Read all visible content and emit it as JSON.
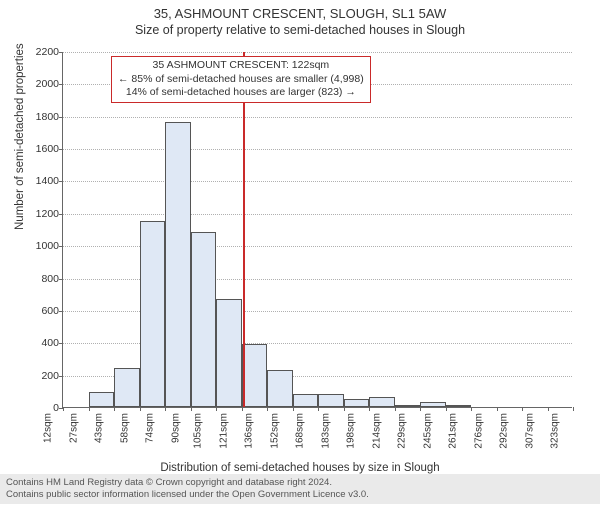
{
  "title_main": "35, ASHMOUNT CRESCENT, SLOUGH, SL1 5AW",
  "title_sub": "Size of property relative to semi-detached houses in Slough",
  "ylabel": "Number of semi-detached properties",
  "xlabel": "Distribution of semi-detached houses by size in Slough",
  "footer_line1": "Contains HM Land Registry data © Crown copyright and database right 2024.",
  "footer_line2": "Contains public sector information licensed under the Open Government Licence v3.0.",
  "chart": {
    "type": "histogram",
    "background_color": "#ffffff",
    "grid_color": "#b0b0b0",
    "bar_fill": "#dfe8f5",
    "bar_stroke": "#555555",
    "axis_color": "#666666",
    "marker_color": "#c92a2a",
    "ylim": [
      0,
      2200
    ],
    "ytick_step": 200,
    "yticks": [
      0,
      200,
      400,
      600,
      800,
      1000,
      1200,
      1400,
      1600,
      1800,
      2000,
      2200
    ],
    "xtick_labels": [
      "12sqm",
      "27sqm",
      "43sqm",
      "58sqm",
      "74sqm",
      "90sqm",
      "105sqm",
      "121sqm",
      "136sqm",
      "152sqm",
      "168sqm",
      "183sqm",
      "198sqm",
      "214sqm",
      "229sqm",
      "245sqm",
      "261sqm",
      "276sqm",
      "292sqm",
      "307sqm",
      "323sqm"
    ],
    "bars": [
      {
        "v": 0
      },
      {
        "v": 90
      },
      {
        "v": 240
      },
      {
        "v": 1150
      },
      {
        "v": 1760
      },
      {
        "v": 1080
      },
      {
        "v": 670
      },
      {
        "v": 390
      },
      {
        "v": 230
      },
      {
        "v": 80
      },
      {
        "v": 80
      },
      {
        "v": 50
      },
      {
        "v": 60
      },
      {
        "v": 15
      },
      {
        "v": 30
      },
      {
        "v": 10
      },
      {
        "v": 0
      },
      {
        "v": 0
      },
      {
        "v": 0
      },
      {
        "v": 0
      }
    ],
    "marker_value_sqm": 122,
    "marker_bin_index": 7,
    "annotation": {
      "line1": "35 ASHMOUNT CRESCENT: 122sqm",
      "line2": "← 85% of semi-detached houses are smaller (4,998)",
      "line3": "14% of semi-detached houses are larger (823) →"
    },
    "title_fontsize": 13,
    "label_fontsize": 11.5,
    "tick_fontsize": 10.5
  }
}
